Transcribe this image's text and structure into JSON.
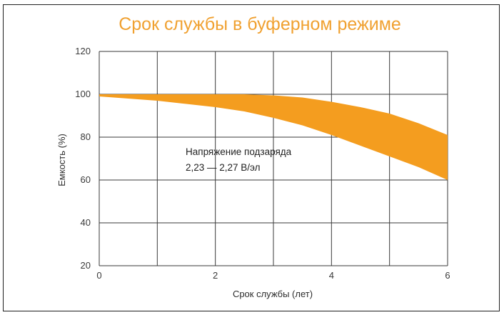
{
  "chart_data": {
    "type": "area",
    "title": "Срок службы в буферном режиме",
    "xlabel": "Срок службы (лет)",
    "ylabel": "Емкость (%)",
    "xlim": [
      0,
      6
    ],
    "ylim": [
      20,
      120
    ],
    "x_ticks": [
      "0",
      "2",
      "4",
      "6"
    ],
    "y_ticks": [
      "20",
      "40",
      "60",
      "80",
      "100",
      "120"
    ],
    "grid": true,
    "annotation": [
      "Напряжение подзаряда",
      "2,23 — 2,27 В/эл"
    ],
    "colors": {
      "band": "#f49d1f",
      "title": "#f0a131",
      "grid": "#3a3a3a"
    },
    "series": [
      {
        "x": [
          0,
          0.5,
          1,
          1.5,
          2,
          2.5,
          3,
          3.5,
          4,
          4.5,
          5,
          5.5,
          6
        ],
        "upper": [
          100,
          100,
          100,
          100,
          100,
          100,
          99.5,
          98.5,
          96.5,
          94,
          91,
          86.5,
          81
        ],
        "lower": [
          99,
          98,
          97,
          95.5,
          94,
          92,
          89,
          85.5,
          81,
          76,
          71,
          66,
          60
        ]
      }
    ]
  }
}
